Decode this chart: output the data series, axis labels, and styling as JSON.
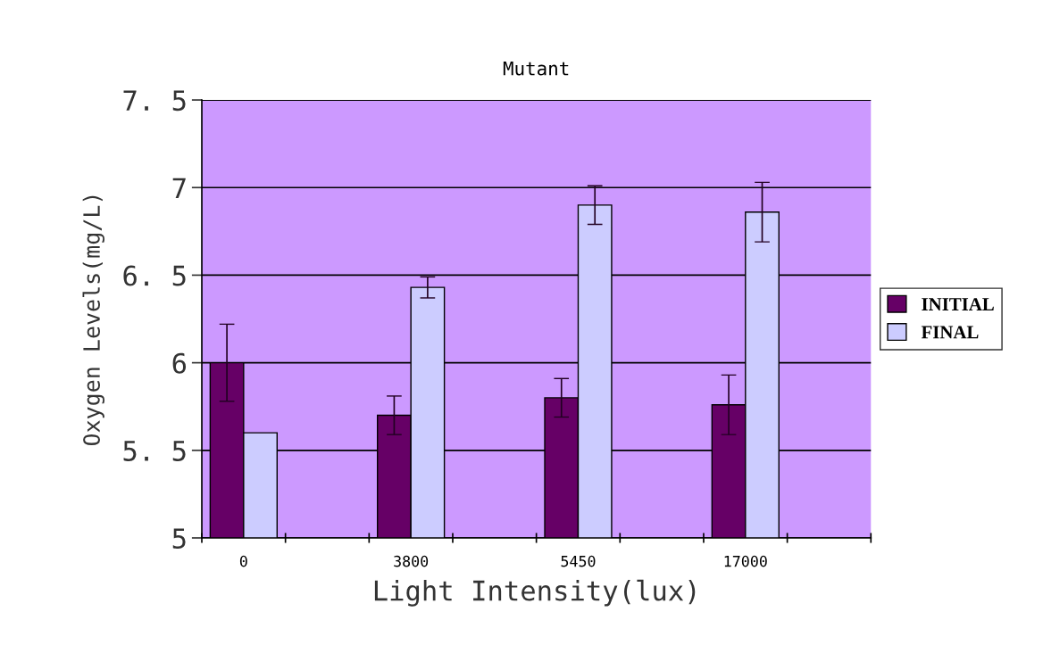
{
  "chart_data": {
    "type": "bar",
    "title": "Mutant",
    "xlabel": "Light Intensity(lux)",
    "ylabel": "Oxygen Levels(mg/L)",
    "categories": [
      "0",
      null,
      "3800",
      null,
      "5450",
      null,
      "17000",
      null
    ],
    "series": [
      {
        "name": "INITIAL",
        "color": "#660066",
        "values": [
          6.0,
          null,
          5.7,
          null,
          5.8,
          null,
          5.76,
          null
        ],
        "errors": [
          0.22,
          null,
          0.11,
          null,
          0.11,
          null,
          0.17,
          null
        ]
      },
      {
        "name": "FINAL",
        "color": "#ccccff",
        "values": [
          5.6,
          null,
          6.43,
          null,
          6.9,
          null,
          6.86,
          null
        ],
        "errors": [
          null,
          null,
          0.06,
          null,
          0.11,
          null,
          0.17,
          null
        ]
      }
    ],
    "ylim": [
      5,
      7.5
    ],
    "yticks": [
      5,
      {
        "value": 5.5,
        "label": "5. 5"
      },
      6,
      {
        "value": 6.5,
        "label": "6. 5"
      },
      7,
      {
        "value": 7.5,
        "label": "7. 5"
      }
    ],
    "grid": "y",
    "legend": "right"
  }
}
